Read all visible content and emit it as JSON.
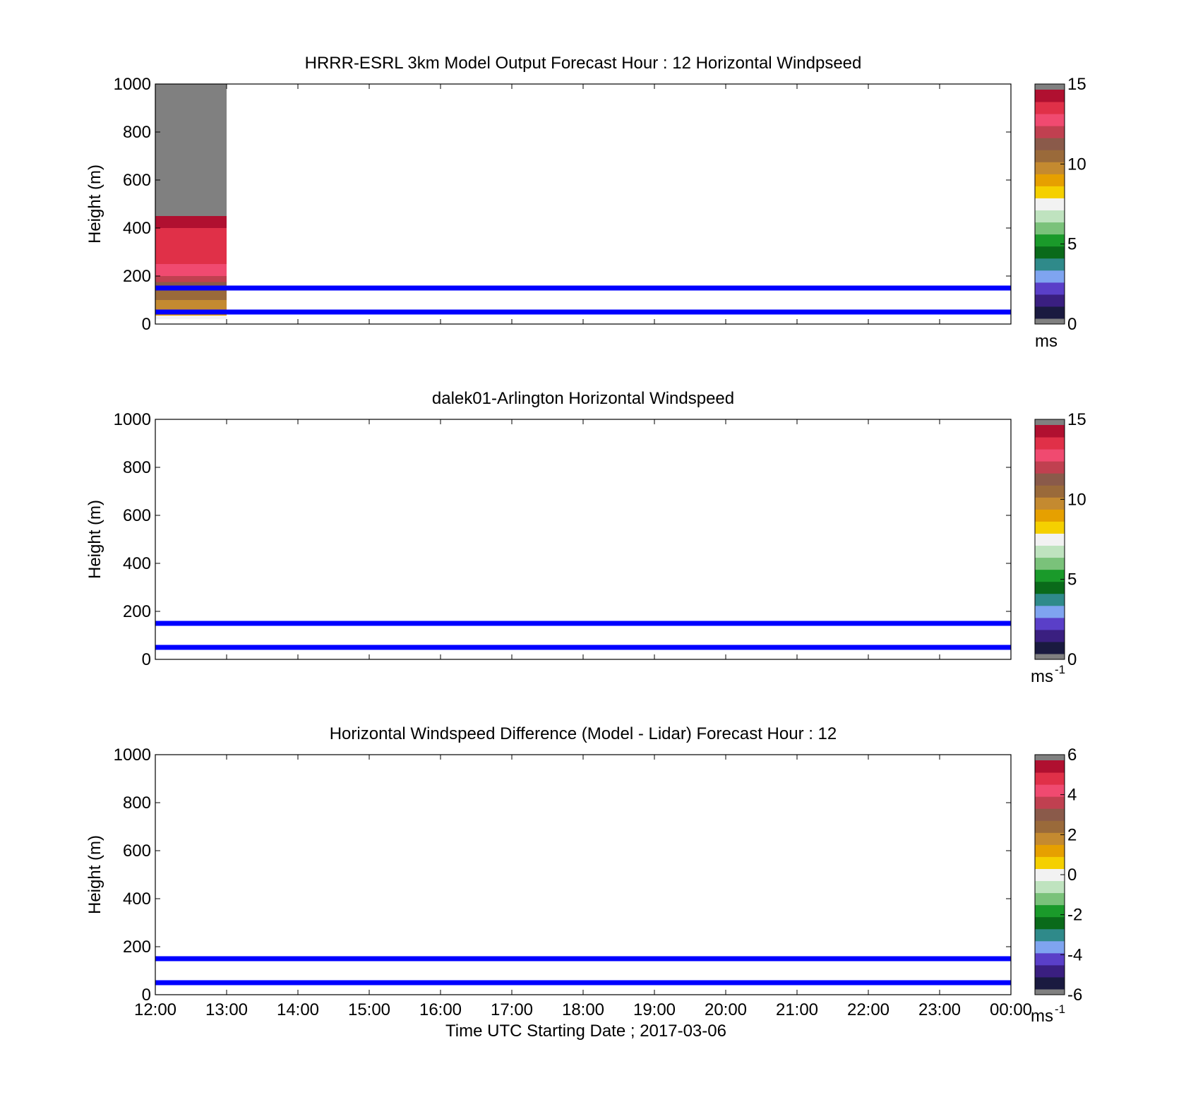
{
  "figure": {
    "xlabel": "Time UTC  Starting Date ; 2017-03-06",
    "time_ticks": [
      "12:00",
      "13:00",
      "14:00",
      "15:00",
      "16:00",
      "17:00",
      "18:00",
      "19:00",
      "20:00",
      "21:00",
      "22:00",
      "23:00",
      "00:00"
    ]
  },
  "colormap": [
    "#1a1a40",
    "#3a1f80",
    "#5a3fc8",
    "#7fa4f0",
    "#2f8a8a",
    "#0a6a1a",
    "#1a9a2a",
    "#7ac27a",
    "#bfe3bf",
    "#f2f2f2",
    "#f5d000",
    "#e6a000",
    "#c48a30",
    "#9a6a3a",
    "#8a5a4a",
    "#c04050",
    "#f04a70",
    "#e03048",
    "#b01030"
  ],
  "out_of_range_color": "#808080",
  "chart_data": [
    {
      "type": "heatmap",
      "title": "HRRR-ESRL 3km Model Output   Forecast Hour : 12 Horizontal Windpseed",
      "xlabel": "",
      "ylabel": "Height (m)",
      "xlim": [
        "12:00",
        "00:00"
      ],
      "ylim": [
        0,
        1000
      ],
      "yticks": [
        "0",
        "200",
        "400",
        "600",
        "800",
        "1000"
      ],
      "colorbar": {
        "range": [
          0,
          15
        ],
        "ticks": [
          "0",
          "5",
          "10",
          "15"
        ],
        "units": "ms",
        "units_sup": ""
      },
      "cells": [
        {
          "t0": "12:00",
          "t1": "13:00",
          "h0": 450,
          "h1": 1000,
          "value": "above-range"
        },
        {
          "t0": "12:00",
          "t1": "13:00",
          "h0": 400,
          "h1": 450,
          "value": 14.8
        },
        {
          "t0": "12:00",
          "t1": "13:00",
          "h0": 350,
          "h1": 400,
          "value": 14.2
        },
        {
          "t0": "12:00",
          "t1": "13:00",
          "h0": 300,
          "h1": 350,
          "value": 13.9
        },
        {
          "t0": "12:00",
          "t1": "13:00",
          "h0": 250,
          "h1": 300,
          "value": 13.6
        },
        {
          "t0": "12:00",
          "t1": "13:00",
          "h0": 200,
          "h1": 250,
          "value": 12.8
        },
        {
          "t0": "12:00",
          "t1": "13:00",
          "h0": 175,
          "h1": 200,
          "value": 12.2
        },
        {
          "t0": "12:00",
          "t1": "13:00",
          "h0": 150,
          "h1": 175,
          "value": 11.6
        },
        {
          "t0": "12:00",
          "t1": "13:00",
          "h0": 125,
          "h1": 150,
          "value": 11.0
        },
        {
          "t0": "12:00",
          "t1": "13:00",
          "h0": 100,
          "h1": 125,
          "value": 10.6
        },
        {
          "t0": "12:00",
          "t1": "13:00",
          "h0": 75,
          "h1": 100,
          "value": 10.0
        },
        {
          "t0": "12:00",
          "t1": "13:00",
          "h0": 50,
          "h1": 75,
          "value": 9.5
        },
        {
          "t0": "12:00",
          "t1": "13:00",
          "h0": 35,
          "h1": 50,
          "value": 8.8
        },
        {
          "t0": "12:00",
          "t1": "13:00",
          "h0": 20,
          "h1": 35,
          "value": 7.3
        }
      ],
      "reference_lines_m": [
        50,
        150
      ],
      "show_xtick_labels": false
    },
    {
      "type": "heatmap",
      "title": "dalek01-Arlington  Horizontal Windspeed",
      "xlabel": "",
      "ylabel": "Height (m)",
      "xlim": [
        "12:00",
        "00:00"
      ],
      "ylim": [
        0,
        1000
      ],
      "yticks": [
        "0",
        "200",
        "400",
        "600",
        "800",
        "1000"
      ],
      "colorbar": {
        "range": [
          0,
          15
        ],
        "ticks": [
          "0",
          "5",
          "10",
          "15"
        ],
        "units": "ms",
        "units_sup": "-1"
      },
      "cells": [],
      "reference_lines_m": [
        50,
        150
      ],
      "show_xtick_labels": false
    },
    {
      "type": "heatmap",
      "title": "Horizontal Windspeed Difference (Model - Lidar) Forecast Hour : 12",
      "xlabel": "Time UTC  Starting Date ; 2017-03-06",
      "ylabel": "Height (m)",
      "xlim": [
        "12:00",
        "00:00"
      ],
      "ylim": [
        0,
        1000
      ],
      "yticks": [
        "0",
        "200",
        "400",
        "600",
        "800",
        "1000"
      ],
      "colorbar": {
        "range": [
          -6,
          6
        ],
        "ticks": [
          "-6",
          "-4",
          "-2",
          "0",
          "2",
          "4",
          "6"
        ],
        "units": "ms",
        "units_sup": "-1"
      },
      "cells": [],
      "reference_lines_m": [
        50,
        150
      ],
      "show_xtick_labels": true
    }
  ]
}
